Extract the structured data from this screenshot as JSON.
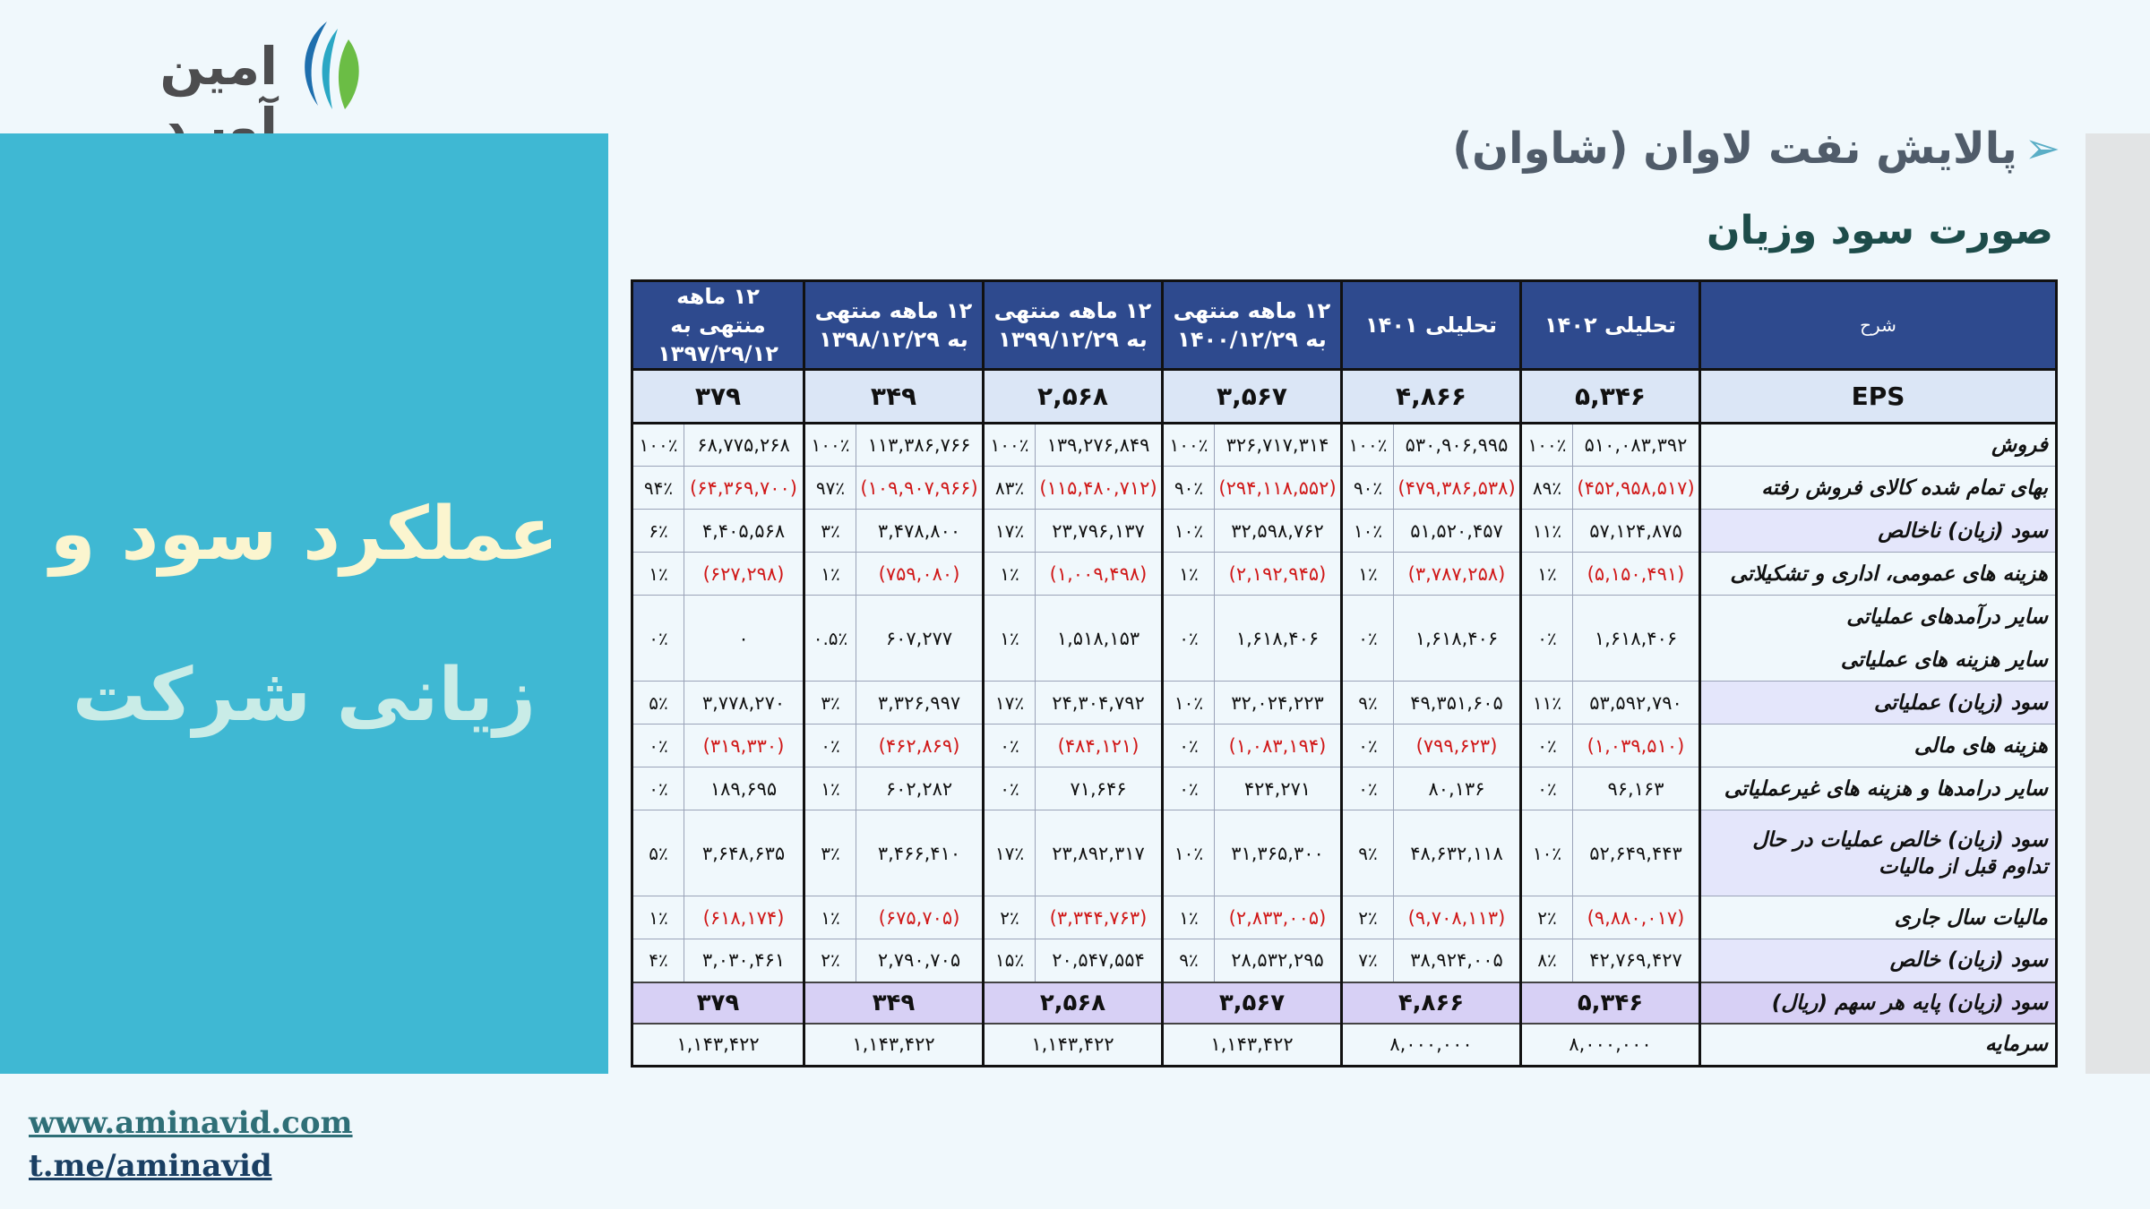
{
  "logo": {
    "text": "امین آویـد",
    "colors": {
      "blue": "#1e6fae",
      "green": "#6bbd45",
      "teal": "#2aa7c4"
    }
  },
  "side_panel": {
    "line1": "عملکرد سود و",
    "line2": "زیانی شرکت",
    "bg": "#3fb8d3"
  },
  "company_title": "پالایش نفت لاوان (شاوان)",
  "statement_title": "صورت سود وزیان",
  "table": {
    "header": {
      "desc": "شرح",
      "cols": [
        "تحلیلی ۱۴۰۲",
        "تحلیلی ۱۴۰۱",
        "۱۲ ماهه منتهی به ۱۴۰۰/۱۲/۲۹",
        "۱۲ ماهه منتهی به ۱۳۹۹/۱۲/۲۹",
        "۱۲ ماهه منتهی به ۱۳۹۸/۱۲/۲۹",
        "۱۲ ماهه منتهی به ۱۳۹۷/۲۹/۱۲"
      ]
    },
    "eps": {
      "label": "EPS",
      "values": [
        "۵,۳۴۶",
        "۴,۸۶۶",
        "۳,۵۶۷",
        "۲,۵۶۸",
        "۳۴۹",
        "۳۷۹"
      ]
    },
    "rows": [
      {
        "label": "فروش",
        "cells": [
          [
            "۵۱۰,۰۸۳,۳۹۲",
            "۱۰۰٪"
          ],
          [
            "۵۳۰,۹۰۶,۹۹۵",
            "۱۰۰٪"
          ],
          [
            "۳۲۶,۷۱۷,۳۱۴",
            "۱۰۰٪"
          ],
          [
            "۱۳۹,۲۷۶,۸۴۹",
            "۱۰۰٪"
          ],
          [
            "۱۱۳,۳۸۶,۷۶۶",
            "۱۰۰٪"
          ],
          [
            "۶۸,۷۷۵,۲۶۸",
            "۱۰۰٪"
          ]
        ],
        "neg": false,
        "alt": false
      },
      {
        "label": "بهای تمام شده کالای فروش رفته",
        "cells": [
          [
            "(۴۵۲,۹۵۸,۵۱۷)",
            "۸۹٪"
          ],
          [
            "(۴۷۹,۳۸۶,۵۳۸)",
            "۹۰٪"
          ],
          [
            "(۲۹۴,۱۱۸,۵۵۲)",
            "۹۰٪"
          ],
          [
            "(۱۱۵,۴۸۰,۷۱۲)",
            "۸۳٪"
          ],
          [
            "(۱۰۹,۹۰۷,۹۶۶)",
            "۹۷٪"
          ],
          [
            "(۶۴,۳۶۹,۷۰۰)",
            "۹۴٪"
          ]
        ],
        "neg": true,
        "alt": false
      },
      {
        "label": "سود (زیان) ناخالص",
        "cells": [
          [
            "۵۷,۱۲۴,۸۷۵",
            "۱۱٪"
          ],
          [
            "۵۱,۵۲۰,۴۵۷",
            "۱۰٪"
          ],
          [
            "۳۲,۵۹۸,۷۶۲",
            "۱۰٪"
          ],
          [
            "۲۳,۷۹۶,۱۳۷",
            "۱۷٪"
          ],
          [
            "۳,۴۷۸,۸۰۰",
            "۳٪"
          ],
          [
            "۴,۴۰۵,۵۶۸",
            "۶٪"
          ]
        ],
        "neg": false,
        "alt": true
      },
      {
        "label": "هزینه های عمومی، اداری و تشکیلاتی",
        "cells": [
          [
            "(۵,۱۵۰,۴۹۱)",
            "۱٪"
          ],
          [
            "(۳,۷۸۷,۲۵۸)",
            "۱٪"
          ],
          [
            "(۲,۱۹۲,۹۴۵)",
            "۱٪"
          ],
          [
            "(۱,۰۰۹,۴۹۸)",
            "۱٪"
          ],
          [
            "(۷۵۹,۰۸۰)",
            "۱٪"
          ],
          [
            "(۶۲۷,۲۹۸)",
            "۱٪"
          ]
        ],
        "neg": true,
        "alt": false
      },
      {
        "label": "سایر درآمدهای عملیاتی",
        "label2": "سایر هزینه های عملیاتی",
        "cells": [
          [
            "۱,۶۱۸,۴۰۶",
            "۰٪"
          ],
          [
            "۱,۶۱۸,۴۰۶",
            "۰٪"
          ],
          [
            "۱,۶۱۸,۴۰۶",
            "۰٪"
          ],
          [
            "۱,۵۱۸,۱۵۳",
            "۱٪"
          ],
          [
            "۶۰۷,۲۷۷",
            "۰.۵٪"
          ],
          [
            "۰",
            "۰٪"
          ]
        ],
        "neg": false,
        "alt": false,
        "tall": true
      },
      {
        "label": "سود (زیان) عملیاتی",
        "cells": [
          [
            "۵۳,۵۹۲,۷۹۰",
            "۱۱٪"
          ],
          [
            "۴۹,۳۵۱,۶۰۵",
            "۹٪"
          ],
          [
            "۳۲,۰۲۴,۲۲۳",
            "۱۰٪"
          ],
          [
            "۲۴,۳۰۴,۷۹۲",
            "۱۷٪"
          ],
          [
            "۳,۳۲۶,۹۹۷",
            "۳٪"
          ],
          [
            "۳,۷۷۸,۲۷۰",
            "۵٪"
          ]
        ],
        "neg": false,
        "alt": true
      },
      {
        "label": "هزینه های مالی",
        "cells": [
          [
            "(۱,۰۳۹,۵۱۰)",
            "۰٪"
          ],
          [
            "(۷۹۹,۶۲۳)",
            "۰٪"
          ],
          [
            "(۱,۰۸۳,۱۹۴)",
            "۰٪"
          ],
          [
            "(۴۸۴,۱۲۱)",
            "۰٪"
          ],
          [
            "(۴۶۲,۸۶۹)",
            "۰٪"
          ],
          [
            "(۳۱۹,۳۳۰)",
            "۰٪"
          ]
        ],
        "neg": true,
        "alt": false
      },
      {
        "label": "سایر درامدها و هزینه های غیرعملیاتی",
        "cells": [
          [
            "۹۶,۱۶۳",
            "۰٪"
          ],
          [
            "۸۰,۱۳۶",
            "۰٪"
          ],
          [
            "۴۲۴,۲۷۱",
            "۰٪"
          ],
          [
            "۷۱,۶۴۶",
            "۰٪"
          ],
          [
            "۶۰۲,۲۸۲",
            "۱٪"
          ],
          [
            "۱۸۹,۶۹۵",
            "۰٪"
          ]
        ],
        "neg": false,
        "alt": false
      },
      {
        "label": "سود (زیان) خالص عملیات در حال تداوم قبل از مالیات",
        "cells": [
          [
            "۵۲,۶۴۹,۴۴۳",
            "۱۰٪"
          ],
          [
            "۴۸,۶۳۲,۱۱۸",
            "۹٪"
          ],
          [
            "۳۱,۳۶۵,۳۰۰",
            "۱۰٪"
          ],
          [
            "۲۳,۸۹۲,۳۱۷",
            "۱۷٪"
          ],
          [
            "۳,۴۶۶,۴۱۰",
            "۳٪"
          ],
          [
            "۳,۶۴۸,۶۳۵",
            "۵٪"
          ]
        ],
        "neg": false,
        "alt": true,
        "tall": true
      },
      {
        "label": "مالیات سال جاری",
        "cells": [
          [
            "(۹,۸۸۰,۰۱۷)",
            "۲٪"
          ],
          [
            "(۹,۷۰۸,۱۱۳)",
            "۲٪"
          ],
          [
            "(۲,۸۳۳,۰۰۵)",
            "۱٪"
          ],
          [
            "(۳,۳۴۴,۷۶۳)",
            "۲٪"
          ],
          [
            "(۶۷۵,۷۰۵)",
            "۱٪"
          ],
          [
            "(۶۱۸,۱۷۴)",
            "۱٪"
          ]
        ],
        "neg": true,
        "alt": false
      },
      {
        "label": "سود (زیان) خالص",
        "cells": [
          [
            "۴۲,۷۶۹,۴۲۷",
            "۸٪"
          ],
          [
            "۳۸,۹۲۴,۰۰۵",
            "۷٪"
          ],
          [
            "۲۸,۵۳۲,۲۹۵",
            "۹٪"
          ],
          [
            "۲۰,۵۴۷,۵۵۴",
            "۱۵٪"
          ],
          [
            "۲,۷۹۰,۷۰۵",
            "۲٪"
          ],
          [
            "۳,۰۳۰,۴۶۱",
            "۴٪"
          ]
        ],
        "neg": false,
        "alt": true
      }
    ],
    "eps_bottom": {
      "label": "سود (زیان)  پایه هر سهم (ریال)",
      "values": [
        "۵,۳۴۶",
        "۴,۸۶۶",
        "۳,۵۶۷",
        "۲,۵۶۸",
        "۳۴۹",
        "۳۷۹"
      ]
    },
    "capital": {
      "label": "سرمایه",
      "values": [
        "۸,۰۰۰,۰۰۰",
        "۸,۰۰۰,۰۰۰",
        "۱,۱۴۳,۴۲۲",
        "۱,۱۴۳,۴۲۲",
        "۱,۱۴۳,۴۲۲",
        "۱,۱۴۳,۴۲۲"
      ]
    }
  },
  "links": [
    "www.aminavid.com",
    "t.me/aminavid"
  ]
}
